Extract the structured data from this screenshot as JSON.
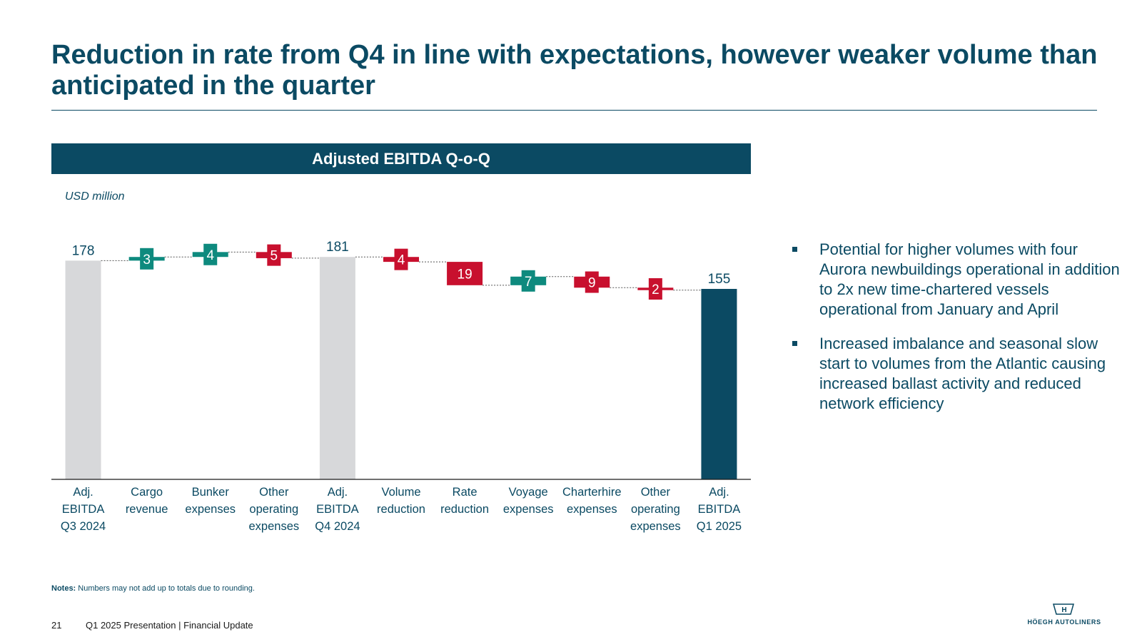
{
  "title": "Reduction in rate from Q4 in line with expectations, however weaker volume than anticipated in the quarter",
  "chart_header": "Adjusted EBITDA Q-o-Q",
  "unit_label": "USD million",
  "chart_data": {
    "type": "waterfall",
    "title": "Adjusted EBITDA Q-o-Q",
    "ylabel": "USD million",
    "ylim": [
      0,
      190
    ],
    "steps": [
      {
        "label": [
          "Adj.",
          "EBITDA",
          "Q3 2024"
        ],
        "kind": "total",
        "value": 178,
        "display": "178"
      },
      {
        "label": [
          "Cargo",
          "revenue"
        ],
        "kind": "increase",
        "value": 3,
        "display": "3"
      },
      {
        "label": [
          "Bunker",
          "expenses"
        ],
        "kind": "increase",
        "value": 4,
        "display": "4"
      },
      {
        "label": [
          "Other",
          "operating",
          "expenses"
        ],
        "kind": "decrease",
        "value": -5,
        "display": "5"
      },
      {
        "label": [
          "Adj.",
          "EBITDA",
          "Q4 2024"
        ],
        "kind": "total",
        "value": 181,
        "display": "181"
      },
      {
        "label": [
          "Volume",
          "reduction"
        ],
        "kind": "decrease",
        "value": -4,
        "display": "4"
      },
      {
        "label": [
          "Rate",
          "reduction"
        ],
        "kind": "decrease",
        "value": -19,
        "display": "19"
      },
      {
        "label": [
          "Voyage",
          "expenses"
        ],
        "kind": "increase",
        "value": 7,
        "display": "7"
      },
      {
        "label": [
          "Charterhire",
          "expenses"
        ],
        "kind": "decrease",
        "value": -9,
        "display": "9"
      },
      {
        "label": [
          "Other",
          "operating",
          "expenses"
        ],
        "kind": "decrease",
        "value": -2,
        "display": "2"
      },
      {
        "label": [
          "Adj.",
          "EBITDA",
          "Q1 2025"
        ],
        "kind": "total",
        "value": 155,
        "display": "155"
      }
    ],
    "colors": {
      "total_previous": "#d7d8da",
      "total_current": "#0b4a63",
      "increase": "#0e8a7e",
      "decrease": "#c8102e",
      "connector": "#555555",
      "label_text": "#0b4a63"
    }
  },
  "bullets": [
    "Potential for higher volumes with four Aurora newbuildings operational in addition to 2x new time-chartered vessels operational from January and April",
    "Increased imbalance and seasonal slow start to volumes from the Atlantic causing increased ballast activity and reduced network efficiency"
  ],
  "notes": {
    "label": "Notes:",
    "text": " Numbers may not add up to totals due to rounding."
  },
  "footer": {
    "page_number": "21",
    "text": "Q1 2025 Presentation | Financial Update"
  },
  "logo": {
    "text": "HÖEGH AUTOLINERS",
    "mark": "H"
  }
}
